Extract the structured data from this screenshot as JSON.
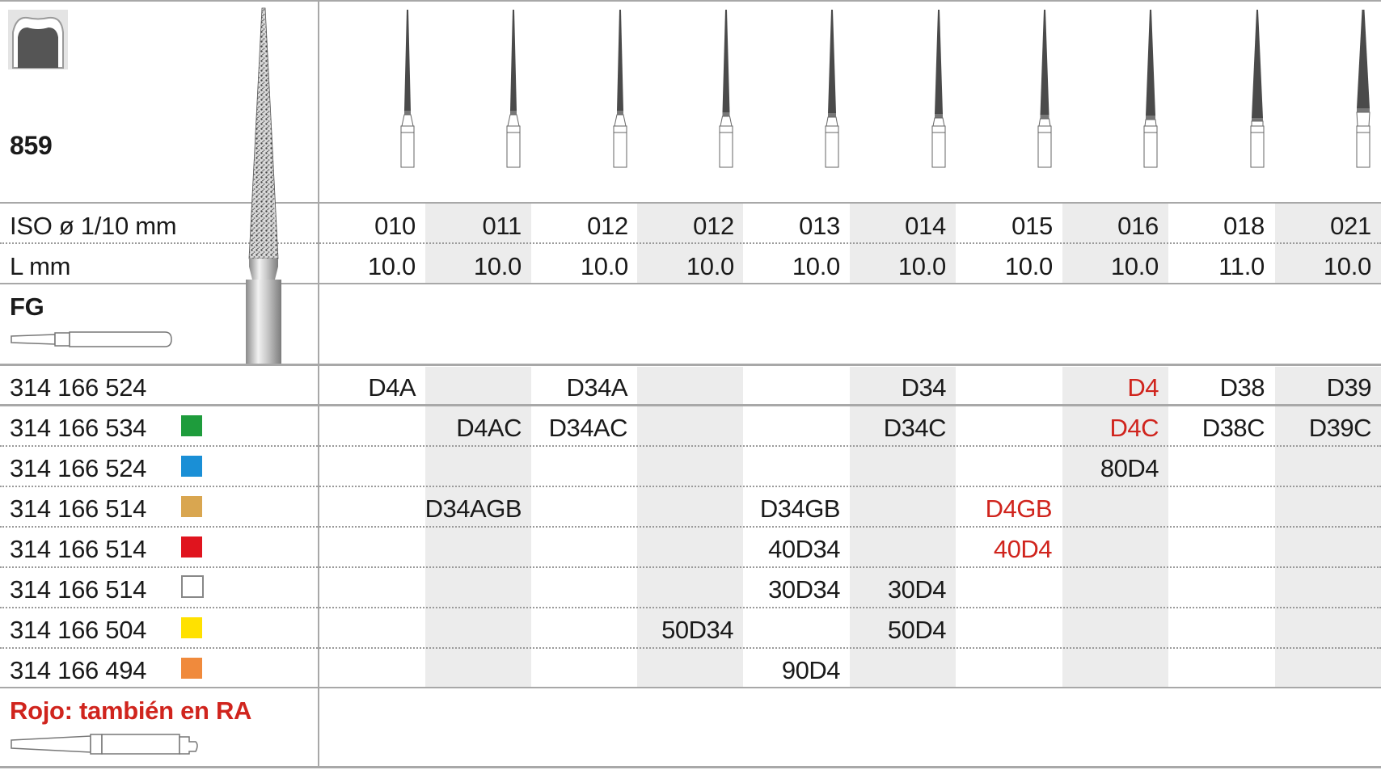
{
  "model": "859",
  "labels": {
    "iso": "ISO ø 1/10 mm",
    "length": "L mm",
    "shank": "FG",
    "footnote": "Rojo: también en RA"
  },
  "sizes": [
    "010",
    "011",
    "012",
    "012",
    "013",
    "014",
    "015",
    "016",
    "018",
    "021"
  ],
  "lengths": [
    "10.0",
    "10.0",
    "10.0",
    "10.0",
    "10.0",
    "10.0",
    "10.0",
    "10.0",
    "11.0",
    "10.0"
  ],
  "colors": {
    "red_text": "#d0241d",
    "shade": "#ececec",
    "line": "#a8a8a8"
  },
  "rows": [
    {
      "ref": "314 166 524",
      "swatch": null,
      "swatch_name": "",
      "cells": [
        "D4A",
        "",
        "D34A",
        "",
        "",
        "D34",
        "",
        "D4",
        "D38",
        "D39"
      ],
      "red": [
        7
      ]
    },
    {
      "ref": "314 166 534",
      "swatch": "#1e9c3c",
      "swatch_name": "green-grit-icon",
      "cells": [
        "",
        "D4AC",
        "D34AC",
        "",
        "",
        "D34C",
        "",
        "D4C",
        "D38C",
        "D39C"
      ],
      "red": [
        7
      ]
    },
    {
      "ref": "314 166 524",
      "swatch": "#1a8fd6",
      "swatch_name": "blue-grit-icon",
      "cells": [
        "",
        "",
        "",
        "",
        "",
        "",
        "",
        "80D4",
        "",
        ""
      ],
      "red": []
    },
    {
      "ref": "314 166 514",
      "swatch": "#d9a650",
      "swatch_name": "gold-grit-icon",
      "cells": [
        "",
        "D34AGB",
        "",
        "",
        "D34GB",
        "",
        "D4GB",
        "",
        "",
        ""
      ],
      "red": [
        6
      ]
    },
    {
      "ref": "314 166 514",
      "swatch": "#e0141e",
      "swatch_name": "red-grit-icon",
      "cells": [
        "",
        "",
        "",
        "",
        "40D34",
        "",
        "40D4",
        "",
        "",
        ""
      ],
      "red": [
        6
      ]
    },
    {
      "ref": "314 166 514",
      "swatch": "#ffffff",
      "swatch_name": "white-grit-icon",
      "cells": [
        "",
        "",
        "",
        "",
        "30D34",
        "30D4",
        "",
        "",
        "",
        ""
      ],
      "red": []
    },
    {
      "ref": "314 166 504",
      "swatch": "#ffe100",
      "swatch_name": "yellow-grit-icon",
      "cells": [
        "",
        "",
        "",
        "50D34",
        "",
        "50D4",
        "",
        "",
        "",
        ""
      ],
      "red": []
    },
    {
      "ref": "314 166 494",
      "swatch": "#f08a3c",
      "swatch_name": "orange-grit-icon",
      "cells": [
        "",
        "",
        "",
        "",
        "90D4",
        "",
        "",
        "",
        "",
        ""
      ],
      "red": []
    }
  ]
}
